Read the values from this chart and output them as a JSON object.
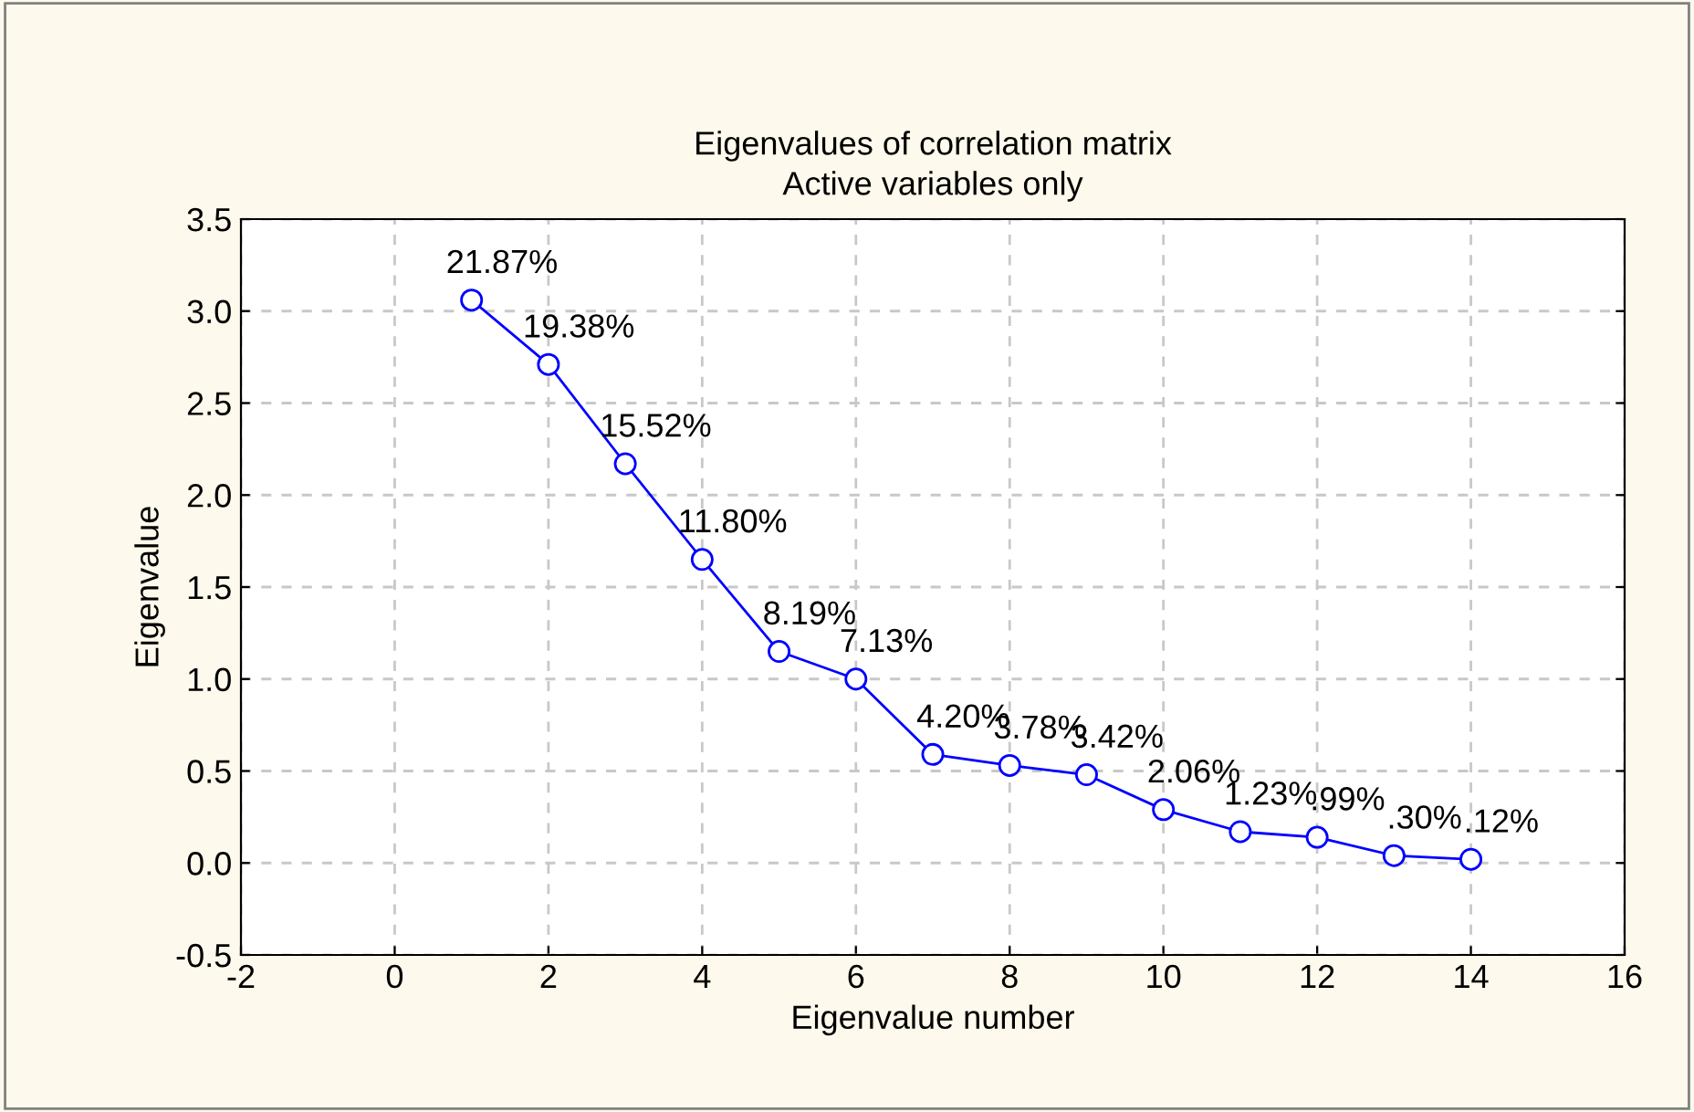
{
  "chart_data": {
    "type": "line",
    "title": "Eigenvalues of correlation matrix",
    "subtitle": "Active variables only",
    "xlabel": "Eigenvalue number",
    "ylabel": "Eigenvalue",
    "x": [
      1,
      2,
      3,
      4,
      5,
      6,
      7,
      8,
      9,
      10,
      11,
      12,
      13,
      14
    ],
    "series": [
      {
        "color": "#0000ff",
        "values": [
          3.06,
          2.71,
          2.17,
          1.65,
          1.15,
          1.0,
          0.59,
          0.53,
          0.48,
          0.29,
          0.17,
          0.14,
          0.04,
          0.02
        ]
      }
    ],
    "annotations": [
      {
        "text": "21.87%",
        "x": 1,
        "y": 3.06
      },
      {
        "text": "19.38%",
        "x": 2,
        "y": 2.71
      },
      {
        "text": "15.52%",
        "x": 3,
        "y": 2.17
      },
      {
        "text": "11.80%",
        "x": 4,
        "y": 1.65
      },
      {
        "text": "8.19%",
        "x": 5,
        "y": 1.15
      },
      {
        "text": "7.13%",
        "x": 6,
        "y": 1.0
      },
      {
        "text": "4.20%",
        "x": 7,
        "y": 0.59
      },
      {
        "text": "3.78%",
        "x": 8,
        "y": 0.53
      },
      {
        "text": "3.42%",
        "x": 9,
        "y": 0.48
      },
      {
        "text": "2.06%",
        "x": 10,
        "y": 0.29
      },
      {
        "text": "1.23%",
        "x": 11,
        "y": 0.17
      },
      {
        "text": ".99%",
        "x": 12,
        "y": 0.14
      },
      {
        "text": ".30%",
        "x": 13,
        "y": 0.04
      },
      {
        "text": ".12%",
        "x": 14,
        "y": 0.02
      }
    ],
    "xlim": [
      -2,
      16
    ],
    "xticks": [
      -2,
      0,
      2,
      4,
      6,
      8,
      10,
      12,
      14,
      16
    ],
    "ylim": [
      -0.5,
      3.5
    ],
    "yticks": [
      {
        "value": -0.5,
        "label": "-0.5"
      },
      {
        "value": 0,
        "label": "0.0"
      },
      {
        "value": 0.5,
        "label": "0.5"
      },
      {
        "value": 1,
        "label": "1.0"
      },
      {
        "value": 1.5,
        "label": "1.5"
      },
      {
        "value": 2,
        "label": "2.0"
      },
      {
        "value": 2.5,
        "label": "2.5"
      },
      {
        "value": 3,
        "label": "3.0"
      },
      {
        "value": 3.5,
        "label": "3.5"
      }
    ],
    "grid": true,
    "marker": "circle",
    "line_style": "solid"
  }
}
